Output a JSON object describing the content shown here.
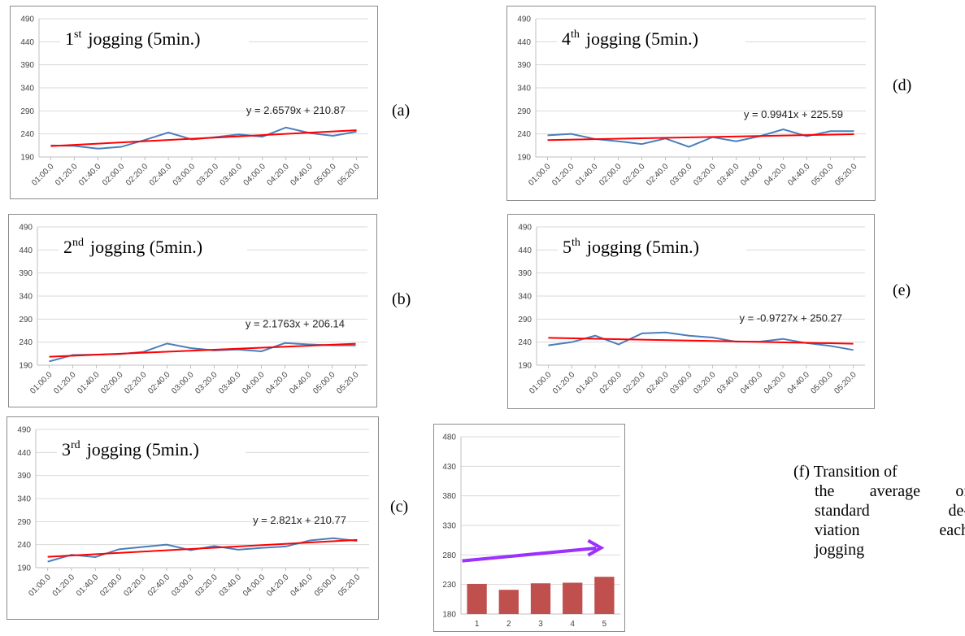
{
  "chart_data": [
    {
      "type": "line",
      "panel_label": "(a)",
      "title": {
        "ordinal": "1",
        "suffix": "st",
        "rest": "jogging (5min.)"
      },
      "x": [
        "01:00.0",
        "01:20.0",
        "01:40.0",
        "02:00.0",
        "02:20.0",
        "02:40.0",
        "03:00.0",
        "03:20.0",
        "03:40.0",
        "04:00.0",
        "04:20.0",
        "04:40.0",
        "05:00.0",
        "05:20.0"
      ],
      "series": [
        {
          "values": [
            215,
            214,
            208,
            212,
            227,
            243,
            228,
            233,
            239,
            234,
            254,
            242,
            236,
            245
          ],
          "color": "#4a7ebb"
        }
      ],
      "trend": {
        "slope": 2.6579,
        "intercept": 210.87,
        "label": "y = 2.6579x + 210.87",
        "color": "#ff0000"
      },
      "ylim": [
        190,
        490
      ],
      "yticks": [
        190,
        240,
        290,
        340,
        390,
        440,
        490
      ]
    },
    {
      "type": "line",
      "panel_label": "(b)",
      "title": {
        "ordinal": "2",
        "suffix": "nd",
        "rest": "jogging (5min.)"
      },
      "x": [
        "01:00.0",
        "01:20.0",
        "01:40.0",
        "02:00.0",
        "02:20.0",
        "02:40.0",
        "03:00.0",
        "03:20.0",
        "03:40.0",
        "04:00.0",
        "04:20.0",
        "04:40.0",
        "05:00.0",
        "05:20.0"
      ],
      "series": [
        {
          "values": [
            198,
            212,
            213,
            214,
            219,
            237,
            227,
            222,
            224,
            220,
            238,
            235,
            233,
            233
          ],
          "color": "#4a7ebb"
        }
      ],
      "trend": {
        "slope": 2.1763,
        "intercept": 206.14,
        "label": "y = 2.1763x + 206.14",
        "color": "#ff0000"
      },
      "ylim": [
        190,
        490
      ],
      "yticks": [
        190,
        240,
        290,
        340,
        390,
        440,
        490
      ]
    },
    {
      "type": "line",
      "panel_label": "(c)",
      "title": {
        "ordinal": "3",
        "suffix": "rd",
        "rest": "jogging (5min.)"
      },
      "x": [
        "01:00.0",
        "01:20.0",
        "01:40.0",
        "02:00.0",
        "02:20.0",
        "02:40.0",
        "03:00.0",
        "03:20.0",
        "03:40.0",
        "04:00.0",
        "04:20.0",
        "04:40.0",
        "05:00.0",
        "05:20.0"
      ],
      "series": [
        {
          "values": [
            203,
            218,
            213,
            230,
            235,
            240,
            228,
            237,
            229,
            233,
            236,
            249,
            254,
            248
          ],
          "color": "#4a7ebb"
        }
      ],
      "trend": {
        "slope": 2.821,
        "intercept": 210.77,
        "label": "y = 2.821x + 210.77",
        "color": "#ff0000"
      },
      "ylim": [
        190,
        490
      ],
      "yticks": [
        190,
        240,
        290,
        340,
        390,
        440,
        490
      ]
    },
    {
      "type": "line",
      "panel_label": "(d)",
      "title": {
        "ordinal": "4",
        "suffix": "th",
        "rest": "jogging (5min.)"
      },
      "x": [
        "01:00.0",
        "01:20.0",
        "01:40.0",
        "02:00.0",
        "02:20.0",
        "02:40.0",
        "03:00.0",
        "03:20.0",
        "03:40.0",
        "04:00.0",
        "04:20.0",
        "04:40.0",
        "05:00.0",
        "05:20.0"
      ],
      "series": [
        {
          "values": [
            237,
            240,
            229,
            224,
            218,
            230,
            212,
            233,
            224,
            235,
            250,
            235,
            246,
            246
          ],
          "color": "#4a7ebb"
        }
      ],
      "trend": {
        "slope": 0.9941,
        "intercept": 225.59,
        "label": "y = 0.9941x + 225.59",
        "color": "#ff0000"
      },
      "ylim": [
        190,
        490
      ],
      "yticks": [
        190,
        240,
        290,
        340,
        390,
        440,
        490
      ]
    },
    {
      "type": "line",
      "panel_label": "(e)",
      "title": {
        "ordinal": "5",
        "suffix": "th",
        "rest": "jogging (5min.)"
      },
      "x": [
        "01:00.0",
        "01:20.0",
        "01:40.0",
        "02:00.0",
        "02:20.0",
        "02:40.0",
        "03:00.0",
        "03:20.0",
        "03:40.0",
        "04:00.0",
        "04:20.0",
        "04:40.0",
        "05:00.0",
        "05:20.0"
      ],
      "series": [
        {
          "values": [
            233,
            240,
            254,
            235,
            259,
            261,
            254,
            250,
            241,
            241,
            247,
            238,
            232,
            223
          ],
          "color": "#4a7ebb"
        }
      ],
      "trend": {
        "slope": -0.9727,
        "intercept": 250.27,
        "label": "y = -0.9727x + 250.27",
        "color": "#ff0000"
      },
      "ylim": [
        190,
        490
      ],
      "yticks": [
        190,
        240,
        290,
        340,
        390,
        440,
        490
      ]
    },
    {
      "type": "bar",
      "panel_label": "(f)",
      "categories": [
        "1",
        "2",
        "3",
        "4",
        "5"
      ],
      "values": [
        231,
        221,
        232,
        233,
        243
      ],
      "bar_color": "#c0504d",
      "ylim": [
        180,
        480
      ],
      "yticks": [
        180,
        230,
        280,
        330,
        380,
        430,
        480
      ],
      "arrow": {
        "from": 270,
        "to": 292,
        "color": "#9b30ff"
      },
      "caption": [
        "(f) Transition of",
        "the average of",
        "standard de-",
        "viation each",
        "jogging"
      ]
    }
  ]
}
